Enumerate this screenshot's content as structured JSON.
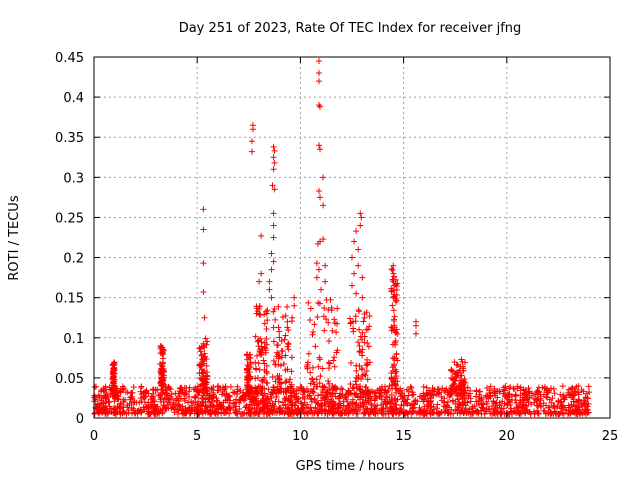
{
  "chart_data": {
    "type": "scatter",
    "title": "Day 251 of 2023, Rate Of TEC Index for receiver jfng",
    "xlabel": "GPS time / hours",
    "ylabel": "ROTI / TECUs",
    "xlim": [
      0,
      25
    ],
    "ylim": [
      0,
      0.45
    ],
    "x_ticks": [
      0,
      5,
      10,
      15,
      20,
      25
    ],
    "x_tick_labels": [
      "0",
      "5",
      "10",
      "15",
      "20",
      "25"
    ],
    "y_ticks": [
      0,
      0.05,
      0.1,
      0.15,
      0.2,
      0.25,
      0.3,
      0.35,
      0.4,
      0.45
    ],
    "y_tick_labels": [
      "0",
      "0.05",
      "0.1",
      "0.15",
      "0.2",
      "0.25",
      "0.3",
      "0.35",
      "0.4",
      "0.45"
    ],
    "grid": true,
    "marker": "plus",
    "color": "#ff0000",
    "baseline": {
      "x_start": 0,
      "x_end": 24,
      "y_min": 0.005,
      "y_max": 0.04
    },
    "clusters": [
      {
        "x": [
          0.9,
          1.0
        ],
        "y": [
          0.03,
          0.07
        ]
      },
      {
        "x": [
          3.2,
          3.4
        ],
        "y": [
          0.04,
          0.09
        ]
      },
      {
        "x": [
          5.1,
          5.5
        ],
        "y": [
          0.03,
          0.1
        ]
      },
      {
        "x": [
          7.4,
          7.6
        ],
        "y": [
          0.03,
          0.08
        ]
      },
      {
        "x": [
          7.8,
          8.4
        ],
        "y": [
          0.03,
          0.14
        ]
      },
      {
        "x": [
          8.6,
          9.6
        ],
        "y": [
          0.03,
          0.14
        ]
      },
      {
        "x": [
          10.3,
          11.8
        ],
        "y": [
          0.03,
          0.15
        ]
      },
      {
        "x": [
          12.4,
          13.4
        ],
        "y": [
          0.03,
          0.14
        ]
      },
      {
        "x": [
          14.4,
          14.7
        ],
        "y": [
          0.04,
          0.19
        ]
      },
      {
        "x": [
          17.3,
          18.0
        ],
        "y": [
          0.03,
          0.07
        ]
      }
    ],
    "outliers": [
      {
        "x": 5.3,
        "y": 0.26
      },
      {
        "x": 5.3,
        "y": 0.235
      },
      {
        "x": 5.3,
        "y": 0.193
      },
      {
        "x": 5.3,
        "y": 0.157
      },
      {
        "x": 5.35,
        "y": 0.125
      },
      {
        "x": 7.7,
        "y": 0.365
      },
      {
        "x": 7.7,
        "y": 0.36
      },
      {
        "x": 7.65,
        "y": 0.345
      },
      {
        "x": 7.65,
        "y": 0.332
      },
      {
        "x": 8.1,
        "y": 0.227
      },
      {
        "x": 8.1,
        "y": 0.18
      },
      {
        "x": 8.0,
        "y": 0.17
      },
      {
        "x": 8.7,
        "y": 0.338
      },
      {
        "x": 8.75,
        "y": 0.333
      },
      {
        "x": 8.7,
        "y": 0.325
      },
      {
        "x": 8.75,
        "y": 0.318
      },
      {
        "x": 8.7,
        "y": 0.31
      },
      {
        "x": 8.65,
        "y": 0.29
      },
      {
        "x": 8.75,
        "y": 0.285
      },
      {
        "x": 8.7,
        "y": 0.255
      },
      {
        "x": 8.7,
        "y": 0.24
      },
      {
        "x": 8.7,
        "y": 0.225
      },
      {
        "x": 8.6,
        "y": 0.205
      },
      {
        "x": 8.7,
        "y": 0.195
      },
      {
        "x": 8.6,
        "y": 0.185
      },
      {
        "x": 8.5,
        "y": 0.17
      },
      {
        "x": 8.5,
        "y": 0.16
      },
      {
        "x": 8.6,
        "y": 0.15
      },
      {
        "x": 9.7,
        "y": 0.15
      },
      {
        "x": 9.7,
        "y": 0.14
      },
      {
        "x": 9.6,
        "y": 0.125
      },
      {
        "x": 10.9,
        "y": 0.445
      },
      {
        "x": 10.9,
        "y": 0.43
      },
      {
        "x": 10.9,
        "y": 0.42
      },
      {
        "x": 10.9,
        "y": 0.39
      },
      {
        "x": 10.95,
        "y": 0.388
      },
      {
        "x": 10.9,
        "y": 0.34
      },
      {
        "x": 10.95,
        "y": 0.335
      },
      {
        "x": 11.1,
        "y": 0.3
      },
      {
        "x": 10.9,
        "y": 0.283
      },
      {
        "x": 10.95,
        "y": 0.275
      },
      {
        "x": 11.1,
        "y": 0.265
      },
      {
        "x": 11.1,
        "y": 0.223
      },
      {
        "x": 10.95,
        "y": 0.22
      },
      {
        "x": 10.85,
        "y": 0.217
      },
      {
        "x": 10.8,
        "y": 0.193
      },
      {
        "x": 10.9,
        "y": 0.185
      },
      {
        "x": 11.2,
        "y": 0.19
      },
      {
        "x": 10.8,
        "y": 0.175
      },
      {
        "x": 11.2,
        "y": 0.17
      },
      {
        "x": 11.0,
        "y": 0.16
      },
      {
        "x": 12.9,
        "y": 0.255
      },
      {
        "x": 12.95,
        "y": 0.25
      },
      {
        "x": 12.9,
        "y": 0.24
      },
      {
        "x": 12.7,
        "y": 0.233
      },
      {
        "x": 12.6,
        "y": 0.22
      },
      {
        "x": 12.8,
        "y": 0.21
      },
      {
        "x": 12.5,
        "y": 0.2
      },
      {
        "x": 12.8,
        "y": 0.19
      },
      {
        "x": 12.6,
        "y": 0.18
      },
      {
        "x": 13.0,
        "y": 0.175
      },
      {
        "x": 12.5,
        "y": 0.165
      },
      {
        "x": 12.7,
        "y": 0.155
      },
      {
        "x": 13.0,
        "y": 0.15
      },
      {
        "x": 14.5,
        "y": 0.19
      },
      {
        "x": 14.5,
        "y": 0.18
      },
      {
        "x": 14.5,
        "y": 0.17
      },
      {
        "x": 14.55,
        "y": 0.165
      },
      {
        "x": 14.5,
        "y": 0.15
      },
      {
        "x": 15.6,
        "y": 0.12
      },
      {
        "x": 15.6,
        "y": 0.115
      },
      {
        "x": 15.6,
        "y": 0.105
      },
      {
        "x": 17.8,
        "y": 0.073
      },
      {
        "x": 17.85,
        "y": 0.07
      }
    ]
  }
}
